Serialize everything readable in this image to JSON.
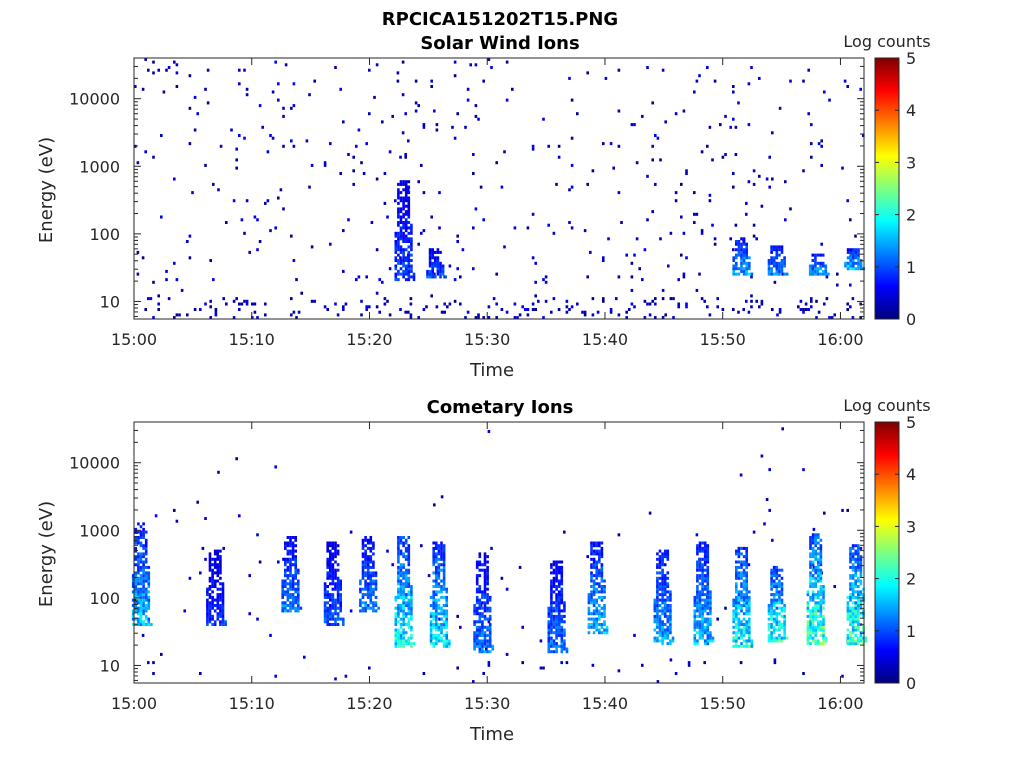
{
  "figure": {
    "title": "RPCICA151202T15.PNG"
  },
  "colorbar": {
    "label": "Log counts",
    "range": [
      0,
      5
    ],
    "ticks": [
      "0",
      "1",
      "2",
      "3",
      "4",
      "5"
    ],
    "colors": [
      "#00007f",
      "#0000ff",
      "#007fff",
      "#00ffff",
      "#7fff7f",
      "#ffff00",
      "#ff7f00",
      "#ff0000",
      "#7f0000"
    ]
  },
  "chart_data": [
    {
      "type": "heatmap",
      "title": "Solar Wind Ions",
      "xlabel": "Time",
      "ylabel": "Energy (eV)",
      "x_ticks": [
        "15:00",
        "15:10",
        "15:20",
        "15:30",
        "15:40",
        "15:50",
        "16:00"
      ],
      "x_range_minutes": [
        0,
        62
      ],
      "y_scale": "log",
      "y_range_eV": [
        5.5,
        40000
      ],
      "y_ticks": [
        "10",
        "100",
        "1000",
        "10000"
      ],
      "clim": [
        0,
        5
      ],
      "features": [
        {
          "time_min": 22.8,
          "energy_eV": [
            20,
            600
          ],
          "log_counts": 1.1
        },
        {
          "time_min": 25.5,
          "energy_eV": [
            22,
            60
          ],
          "log_counts": 1.2
        },
        {
          "time_min": 51.5,
          "energy_eV": [
            25,
            90
          ],
          "log_counts": 1.7
        },
        {
          "time_min": 54.5,
          "energy_eV": [
            25,
            70
          ],
          "log_counts": 1.5
        },
        {
          "time_min": 58.0,
          "energy_eV": [
            25,
            50
          ],
          "log_counts": 1.6
        },
        {
          "time_min": 61.0,
          "energy_eV": [
            30,
            60
          ],
          "log_counts": 1.9
        }
      ]
    },
    {
      "type": "heatmap",
      "title": "Cometary Ions",
      "xlabel": "Time",
      "ylabel": "Energy (eV)",
      "x_ticks": [
        "15:00",
        "15:10",
        "15:20",
        "15:30",
        "15:40",
        "15:50",
        "16:00"
      ],
      "x_range_minutes": [
        0,
        62
      ],
      "y_scale": "log",
      "y_range_eV": [
        5.5,
        40000
      ],
      "y_ticks": [
        "10",
        "100",
        "1000",
        "10000"
      ],
      "clim": [
        0,
        5
      ],
      "features": [
        {
          "time_min": 0.5,
          "energy_eV": [
            40,
            1300
          ],
          "log_counts": 1.8
        },
        {
          "time_min": 6.8,
          "energy_eV": [
            40,
            500
          ],
          "log_counts": 1.0
        },
        {
          "time_min": 13.2,
          "energy_eV": [
            60,
            800
          ],
          "log_counts": 1.5
        },
        {
          "time_min": 16.8,
          "energy_eV": [
            40,
            700
          ],
          "log_counts": 1.2
        },
        {
          "time_min": 19.8,
          "energy_eV": [
            60,
            800
          ],
          "log_counts": 1.5
        },
        {
          "time_min": 22.8,
          "energy_eV": [
            18,
            850
          ],
          "log_counts": 2.2
        },
        {
          "time_min": 25.8,
          "energy_eV": [
            18,
            700
          ],
          "log_counts": 2.1
        },
        {
          "time_min": 29.5,
          "energy_eV": [
            15,
            450
          ],
          "log_counts": 1.4
        },
        {
          "time_min": 35.8,
          "energy_eV": [
            15,
            350
          ],
          "log_counts": 1.4
        },
        {
          "time_min": 39.2,
          "energy_eV": [
            30,
            700
          ],
          "log_counts": 1.8
        },
        {
          "time_min": 44.8,
          "energy_eV": [
            20,
            500
          ],
          "log_counts": 1.7
        },
        {
          "time_min": 48.2,
          "energy_eV": [
            20,
            650
          ],
          "log_counts": 1.8
        },
        {
          "time_min": 51.5,
          "energy_eV": [
            18,
            550
          ],
          "log_counts": 2.2
        },
        {
          "time_min": 54.5,
          "energy_eV": [
            22,
            300
          ],
          "log_counts": 2.3
        },
        {
          "time_min": 57.8,
          "energy_eV": [
            20,
            900
          ],
          "log_counts": 2.6
        },
        {
          "time_min": 61.2,
          "energy_eV": [
            20,
            600
          ],
          "log_counts": 2.5
        }
      ]
    }
  ]
}
